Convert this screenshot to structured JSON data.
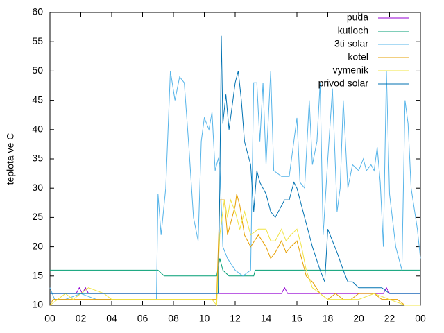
{
  "chart_data": {
    "type": "line",
    "y_label": "teplota ve C",
    "xlim": [
      0,
      24
    ],
    "ylim": [
      10,
      60
    ],
    "xticks": [
      {
        "value": 0,
        "label": "00"
      },
      {
        "value": 2,
        "label": "02"
      },
      {
        "value": 4,
        "label": "04"
      },
      {
        "value": 6,
        "label": "06"
      },
      {
        "value": 8,
        "label": "08"
      },
      {
        "value": 10,
        "label": "10"
      },
      12,
      14,
      16,
      18,
      20,
      22,
      {
        "value": 24,
        "label": "00"
      }
    ],
    "yticks": [
      10,
      15,
      20,
      25,
      30,
      35,
      40,
      45,
      50,
      55,
      60
    ],
    "legend": "top-right",
    "series": [
      {
        "name": "puda",
        "color": "#9400d3",
        "x": [
          0,
          1.7,
          1.9,
          2.1,
          2.3,
          2.5,
          2.7,
          10.9,
          11,
          15.0,
          15.2,
          15.4,
          21.6,
          21.8,
          22,
          24
        ],
        "values": [
          12,
          12,
          13,
          12,
          13,
          12,
          12,
          12,
          12,
          12,
          13,
          12,
          12,
          13,
          12,
          12
        ]
      },
      {
        "name": "kutloch",
        "color": "#009e73",
        "x": [
          0,
          7,
          7.4,
          10.8,
          11,
          11.2,
          11.6,
          13.2,
          13.3,
          24
        ],
        "values": [
          16,
          16,
          15,
          15,
          18,
          16,
          15,
          15,
          16,
          16
        ]
      },
      {
        "name": "3ti solar",
        "color": "#56b4e9",
        "x": [
          0,
          0.3,
          1,
          2,
          3,
          4,
          5,
          6,
          6.9,
          7,
          7.2,
          7.5,
          7.8,
          8.1,
          8.4,
          8.7,
          9,
          9.3,
          9.6,
          9.8,
          10,
          10.3,
          10.5,
          10.7,
          10.9,
          11,
          11.2,
          11.5,
          12,
          12.5,
          13,
          13.2,
          13.4,
          13.6,
          13.8,
          14,
          14.3,
          14.5,
          15,
          15.5,
          16,
          16.2,
          16.5,
          16.8,
          17,
          17.3,
          17.5,
          17.7,
          18,
          18.3,
          18.6,
          18.8,
          19,
          19.3,
          19.6,
          20,
          20.3,
          20.5,
          20.8,
          21,
          21.2,
          21.4,
          21.6,
          21.8,
          22,
          22.4,
          22.8,
          23,
          23.2,
          23.4,
          23.8,
          24
        ],
        "values": [
          13,
          11,
          11,
          12,
          11,
          11,
          11,
          11,
          11,
          29,
          22,
          30,
          50,
          45,
          49,
          48,
          37,
          25,
          21,
          38,
          42,
          40,
          43,
          33,
          35,
          34,
          20,
          18,
          16,
          15,
          16,
          48,
          48,
          38,
          48,
          34,
          50,
          33,
          32,
          32,
          42,
          31,
          30,
          45,
          34,
          38,
          48,
          22,
          35,
          47,
          26,
          30,
          45,
          30,
          34,
          33,
          35,
          33,
          34,
          33,
          37,
          31,
          20,
          50,
          29,
          20,
          16,
          45,
          41,
          30,
          23,
          18
        ]
      },
      {
        "name": "kotel",
        "color": "#e69f00",
        "x": [
          0,
          0.2,
          10.8,
          11,
          11.3,
          11.5,
          11.8,
          12,
          12.1,
          12.3,
          12.6,
          13,
          13.5,
          14,
          14.3,
          14.6,
          15,
          15.3,
          15.6,
          16,
          16.3,
          16.6,
          17,
          17.5,
          18,
          18.5,
          19,
          19.5,
          20,
          21,
          21.5,
          22,
          22.5,
          23,
          24
        ],
        "values": [
          10,
          11,
          11,
          28,
          28,
          22,
          25,
          27,
          29,
          27,
          22,
          20,
          22,
          20,
          18,
          19,
          21,
          19,
          20,
          21,
          18,
          15,
          14,
          12,
          11,
          12,
          11,
          11,
          12,
          12,
          11,
          11,
          11,
          10,
          10
        ]
      },
      {
        "name": "vymenik",
        "color": "#f0e442",
        "x": [
          0,
          0.5,
          1,
          1.5,
          2.5,
          3.5,
          4,
          5,
          6,
          9,
          10.5,
          10.8,
          11,
          11.3,
          11.5,
          11.7,
          12,
          12.3,
          12.6,
          13,
          13.5,
          14,
          14.3,
          14.6,
          15,
          15.3,
          15.6,
          16,
          16.3,
          16.6,
          17,
          17.5,
          18,
          19,
          20,
          21,
          22,
          23,
          24
        ],
        "values": [
          10,
          11,
          12,
          11,
          13,
          12,
          11,
          11,
          11,
          11,
          11,
          10,
          22,
          28,
          25,
          28,
          26,
          23,
          26,
          22,
          23,
          23,
          21,
          21,
          23,
          21,
          22,
          23,
          20,
          16,
          13,
          12,
          11,
          11,
          11,
          12,
          11,
          10,
          10
        ]
      },
      {
        "name": "privod solar",
        "color": "#0072b2",
        "x": [
          0,
          10.9,
          11,
          11.1,
          11.2,
          11.4,
          11.6,
          11.8,
          12,
          12.2,
          12.4,
          12.6,
          12.8,
          13,
          13.2,
          13.4,
          13.6,
          14,
          14.3,
          14.6,
          15,
          15.2,
          15.5,
          15.8,
          16,
          16.5,
          17,
          17.5,
          17.8,
          18,
          18.3,
          18.6,
          19,
          19.3,
          19.6,
          20,
          21,
          21.5,
          22,
          24
        ],
        "values": [
          12,
          12,
          30,
          56,
          41,
          46,
          40,
          44,
          48,
          50,
          45,
          38,
          36,
          34,
          26,
          33,
          31,
          29,
          26,
          25,
          27,
          28,
          28,
          31,
          30,
          25,
          20,
          16,
          14,
          23,
          21,
          19,
          16,
          14,
          14,
          13,
          13,
          13,
          12,
          12
        ]
      }
    ]
  }
}
